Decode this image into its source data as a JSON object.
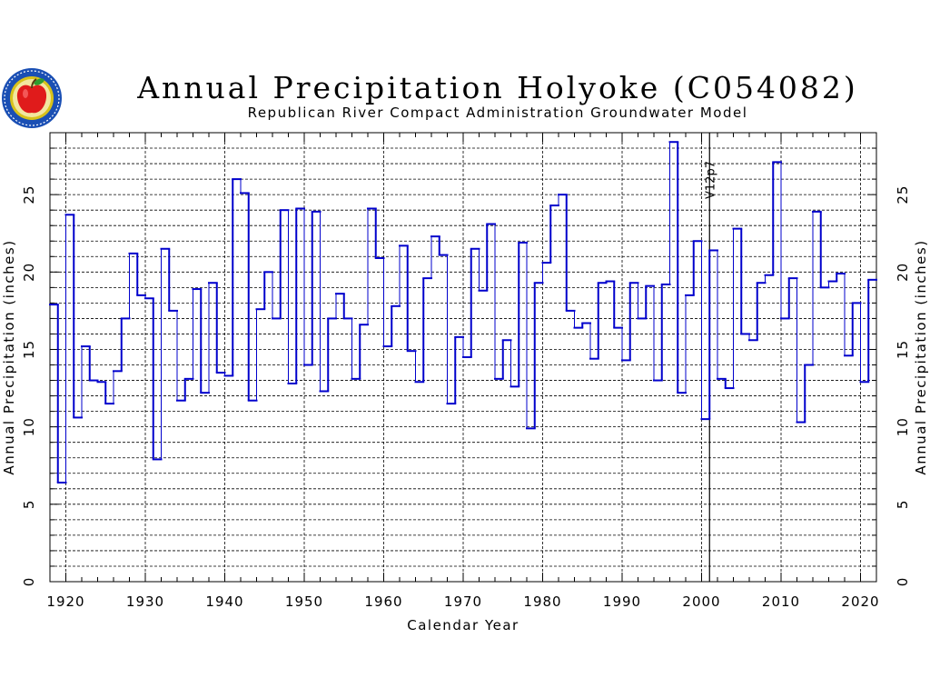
{
  "logo": {
    "icon": "apple-seal-icon",
    "colors": {
      "ring": "#1a4fb4",
      "inner": "#d8c21a",
      "apple": "#e01b1b",
      "leaf": "#2f9c2f"
    }
  },
  "chart_data": {
    "type": "line",
    "style": "step",
    "title": "Annual Precipitation Holyoke (C054082)",
    "subtitle": "Republican River Compact Administration Groundwater Model",
    "xlabel": "Calendar Year",
    "ylabel": "Annual Precipitation (inches)",
    "ylabel_right": "Annual Precipitation (inches)",
    "xlim": [
      1918,
      2022
    ],
    "ylim": [
      0,
      29
    ],
    "x_ticks": [
      1920,
      1930,
      1940,
      1950,
      1960,
      1970,
      1980,
      1990,
      2000,
      2010,
      2020
    ],
    "y_ticks": [
      0,
      5,
      10,
      15,
      20,
      25
    ],
    "grid": true,
    "line_color": "#0000cc",
    "vline": {
      "x": 2001,
      "label": "V12p7"
    },
    "series": [
      {
        "x": [
          1918,
          1919,
          1920,
          1921,
          1922,
          1923,
          1924,
          1925,
          1926,
          1927,
          1928,
          1929,
          1930,
          1931,
          1932,
          1933,
          1934,
          1935,
          1936,
          1937,
          1938,
          1939,
          1940,
          1941,
          1942,
          1943,
          1944,
          1945,
          1946,
          1947,
          1948,
          1949,
          1950,
          1951,
          1952,
          1953,
          1954,
          1955,
          1956,
          1957,
          1958,
          1959,
          1960,
          1961,
          1962,
          1963,
          1964,
          1965,
          1966,
          1967,
          1968,
          1969,
          1970,
          1971,
          1972,
          1973,
          1974,
          1975,
          1976,
          1977,
          1978,
          1979,
          1980,
          1981,
          1982,
          1983,
          1984,
          1985,
          1986,
          1987,
          1988,
          1989,
          1990,
          1991,
          1992,
          1993,
          1994,
          1995,
          1996,
          1997,
          1998,
          1999,
          2000,
          2001,
          2002,
          2003,
          2004,
          2005,
          2006,
          2007,
          2008,
          2009,
          2010,
          2011,
          2012,
          2013,
          2014,
          2015,
          2016,
          2017,
          2018,
          2019,
          2020,
          2021
        ],
        "values": [
          17.9,
          6.4,
          23.7,
          10.6,
          15.2,
          13.0,
          12.9,
          11.5,
          13.6,
          17.0,
          21.2,
          18.5,
          18.3,
          7.9,
          21.5,
          17.5,
          11.7,
          13.1,
          18.9,
          12.2,
          19.3,
          13.5,
          13.3,
          26.0,
          25.1,
          11.7,
          17.6,
          20.0,
          17.0,
          24.0,
          12.8,
          24.1,
          14.0,
          23.9,
          12.3,
          17.0,
          18.6,
          17.0,
          13.1,
          16.6,
          24.1,
          20.9,
          15.2,
          17.8,
          21.7,
          14.9,
          12.9,
          19.6,
          22.3,
          21.1,
          11.5,
          15.8,
          14.5,
          21.5,
          18.8,
          23.1,
          13.1,
          15.6,
          12.6,
          21.9,
          9.9,
          19.3,
          20.6,
          24.3,
          25.0,
          17.5,
          16.4,
          16.7,
          14.4,
          19.3,
          19.4,
          16.4,
          14.3,
          19.3,
          17.0,
          19.1,
          13.0,
          19.2,
          28.4,
          12.2,
          18.5,
          22.0,
          10.5,
          21.4,
          13.1,
          12.5,
          22.8,
          16.0,
          15.6,
          19.3,
          19.8,
          27.1,
          17.0,
          19.6,
          10.3,
          14.0,
          23.9,
          19.0,
          19.4,
          19.9,
          14.6,
          18.0,
          12.9,
          19.5
        ]
      }
    ]
  }
}
